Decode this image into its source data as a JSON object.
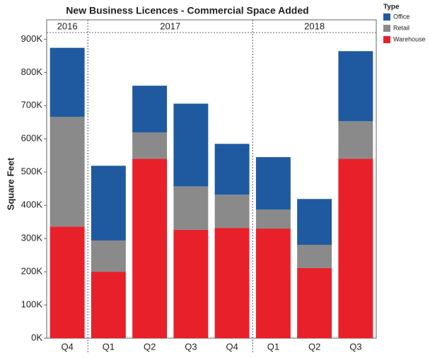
{
  "chart_data": {
    "type": "stacked_bar",
    "title": "New Business Licences - Commercial Space Added",
    "y_label": "Square Feet",
    "groups": [
      {
        "name": "2016",
        "categories": [
          "Q4"
        ]
      },
      {
        "name": "2017",
        "categories": [
          "Q1",
          "Q2",
          "Q3",
          "Q4"
        ]
      },
      {
        "name": "2018",
        "categories": [
          "Q1",
          "Q2",
          "Q3"
        ]
      }
    ],
    "legend_title": "Type",
    "series": [
      {
        "name": "Office",
        "color": "#1f5aa0",
        "values": [
          208000,
          225000,
          141000,
          249000,
          153000,
          158000,
          138000,
          211000
        ]
      },
      {
        "name": "Retail",
        "color": "#8a8a8a",
        "values": [
          330000,
          94000,
          79000,
          131000,
          100000,
          57000,
          70000,
          113000
        ]
      },
      {
        "name": "Warehouse",
        "color": "#e8202a",
        "values": [
          336000,
          200000,
          540000,
          326000,
          332000,
          330000,
          211000,
          540000
        ]
      }
    ],
    "ylim": [
      0,
      920000
    ],
    "yticks": [
      {
        "value": 0,
        "label": "0K"
      },
      {
        "value": 100000,
        "label": "100K"
      },
      {
        "value": 200000,
        "label": "200K"
      },
      {
        "value": 300000,
        "label": "300K"
      },
      {
        "value": 400000,
        "label": "400K"
      },
      {
        "value": 500000,
        "label": "500K"
      },
      {
        "value": 600000,
        "label": "600K"
      },
      {
        "value": 700000,
        "label": "700K"
      },
      {
        "value": 800000,
        "label": "800K"
      },
      {
        "value": 900000,
        "label": "900K"
      }
    ],
    "legend_position": "top-right"
  }
}
